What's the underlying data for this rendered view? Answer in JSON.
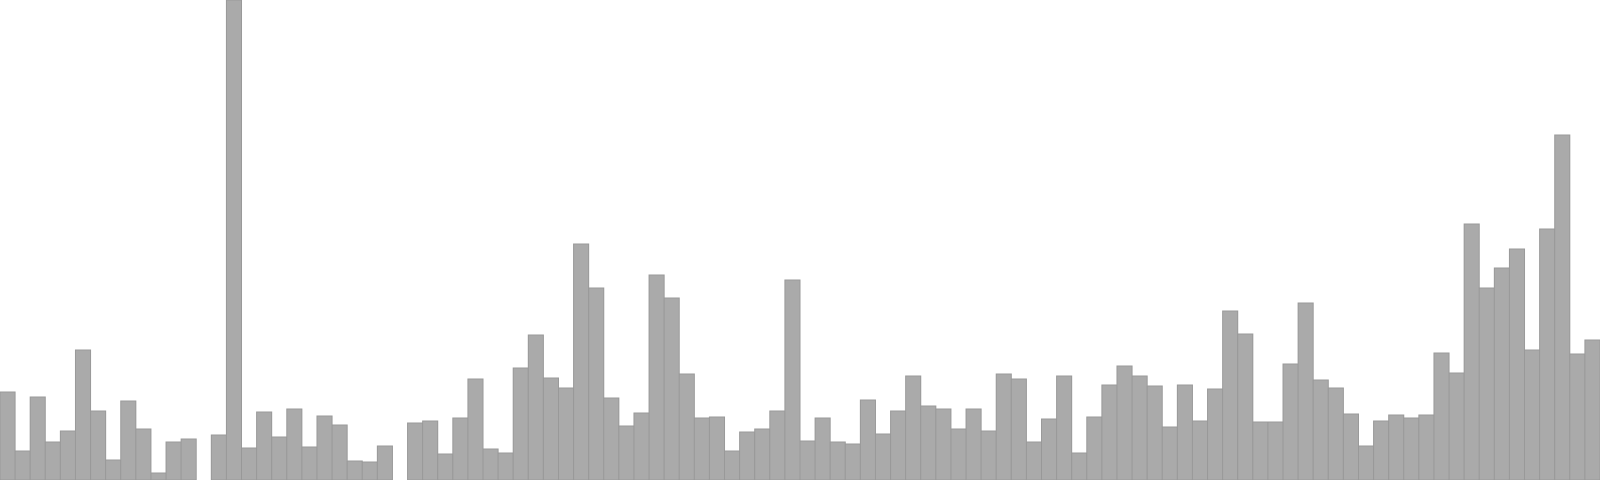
{
  "chart_data": {
    "type": "bar",
    "title": "",
    "xlabel": "",
    "ylabel": "",
    "grid": false,
    "legend": "none",
    "bar_color": "#aaaaaa",
    "bar_edge_color": "#999999",
    "ylim": [
      0,
      480
    ],
    "values": [
      88,
      29,
      83,
      38,
      49,
      130,
      69,
      20,
      79,
      51,
      7,
      38,
      41,
      0,
      45,
      480,
      32,
      68,
      43,
      71,
      33,
      64,
      55,
      19,
      18,
      34,
      0,
      57,
      59,
      26,
      62,
      101,
      31,
      27,
      112,
      145,
      102,
      92,
      236,
      192,
      82,
      54,
      67,
      205,
      182,
      106,
      62,
      63,
      29,
      48,
      51,
      69,
      200,
      39,
      62,
      38,
      36,
      80,
      46,
      69,
      104,
      74,
      71,
      51,
      71,
      49,
      106,
      101,
      38,
      61,
      104,
      27,
      63,
      95,
      114,
      104,
      94,
      53,
      95,
      59,
      91,
      169,
      146,
      58,
      58,
      116,
      177,
      100,
      92,
      66,
      34,
      59,
      65,
      62,
      65,
      127,
      107,
      256,
      192,
      212,
      231,
      130,
      251,
      345,
      126,
      140
    ]
  }
}
